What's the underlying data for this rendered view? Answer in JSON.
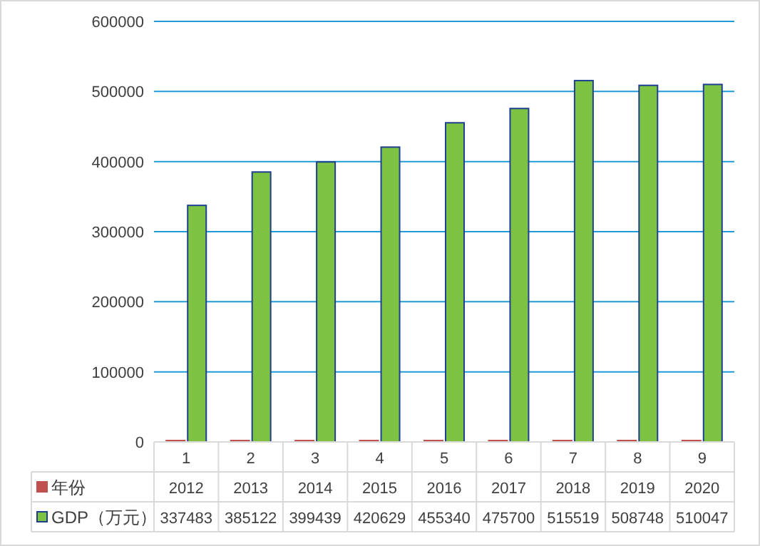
{
  "chart_data": {
    "type": "bar",
    "categories": [
      "1",
      "2",
      "3",
      "4",
      "5",
      "6",
      "7",
      "8",
      "9"
    ],
    "series": [
      {
        "name": "年份",
        "color": "#c0504d",
        "values": [
          2012,
          2013,
          2014,
          2015,
          2016,
          2017,
          2018,
          2019,
          2020
        ]
      },
      {
        "name": "GDP（万元）",
        "color": "#7dc242",
        "values": [
          337483,
          385122,
          399439,
          420629,
          455340,
          475700,
          515519,
          508748,
          510047
        ]
      }
    ],
    "ylim": [
      0,
      600000
    ],
    "yticks": [
      0,
      100000,
      200000,
      300000,
      400000,
      500000,
      600000
    ],
    "grid": "y",
    "data_labels": true,
    "legend": "bottom"
  }
}
